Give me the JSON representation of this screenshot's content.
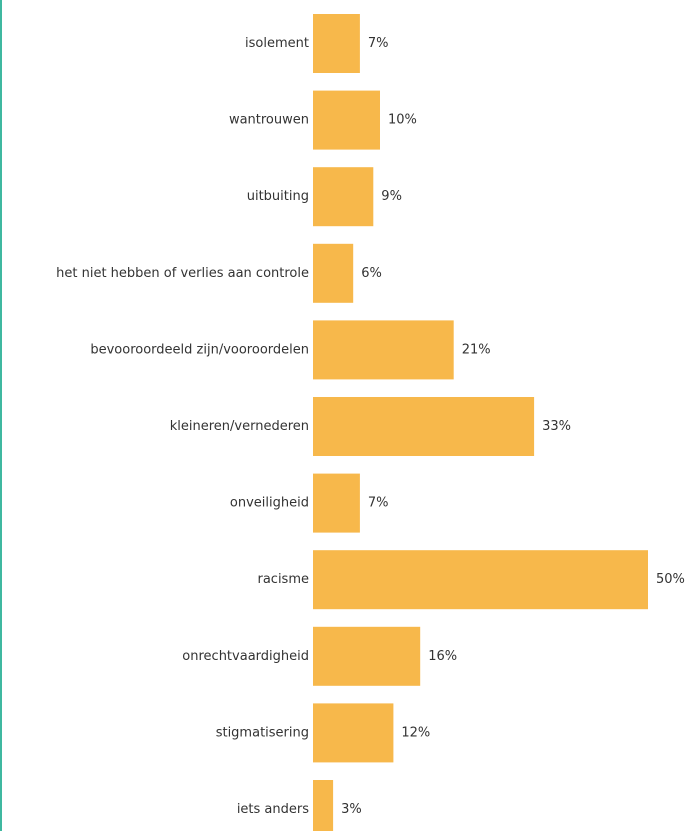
{
  "colors": {
    "bar": "#F7B84B",
    "frame_edge": "#3FB8A0",
    "text": "#333333"
  },
  "chart_data": {
    "type": "bar",
    "orientation": "horizontal",
    "categories": [
      "isolement",
      "wantrouwen",
      "uitbuiting",
      "het niet hebben of verlies aan controle",
      "bevooroordeeld zijn/vooroordelen",
      "kleineren/vernederen",
      "onveiligheid",
      "racisme",
      "onrechtvaardigheid",
      "stigmatisering",
      "iets anders"
    ],
    "values": [
      7,
      10,
      9,
      6,
      21,
      33,
      7,
      50,
      16,
      12,
      3
    ],
    "value_labels": [
      "7%",
      "10%",
      "9%",
      "6%",
      "21%",
      "33%",
      "7%",
      "50%",
      "16%",
      "12%",
      "3%"
    ],
    "unit": "%",
    "xlim": [
      0,
      50
    ],
    "grid": false,
    "legend": "none"
  }
}
